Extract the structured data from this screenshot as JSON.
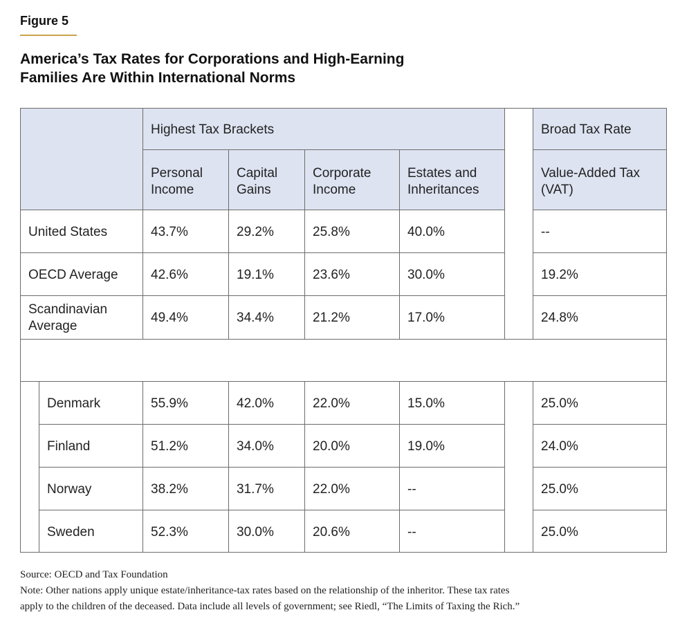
{
  "figure_label": "Figure 5",
  "title_line1": "America’s Tax Rates for Corporations and High-Earning",
  "title_line2": "Families Are Within International Norms",
  "header": {
    "group_highest": "Highest Tax Brackets",
    "group_broad": "Broad Tax Rate",
    "col_personal_1": "Personal",
    "col_personal_2": "Income",
    "col_capital_1": "Capital",
    "col_capital_2": "Gains",
    "col_corporate_1": "Corporate",
    "col_corporate_2": "Income",
    "col_estates_1": "Estates and",
    "col_estates_2": "Inheritances",
    "col_vat_1": "Value-Added Tax",
    "col_vat_2": "(VAT)"
  },
  "rows": [
    {
      "name": "United States",
      "personal": "43.7%",
      "capital": "29.2%",
      "corporate": "25.8%",
      "estates": "40.0%",
      "vat": "--"
    },
    {
      "name": "OECD Average",
      "personal": "42.6%",
      "capital": "19.1%",
      "corporate": "23.6%",
      "estates": "30.0%",
      "vat": "19.2%"
    },
    {
      "name_1": "Scandinavian",
      "name_2": "Average",
      "personal": "49.4%",
      "capital": "34.4%",
      "corporate": "21.2%",
      "estates": "17.0%",
      "vat": "24.8%"
    },
    {
      "name": "Denmark",
      "personal": "55.9%",
      "capital": "42.0%",
      "corporate": "22.0%",
      "estates": "15.0%",
      "vat": "25.0%"
    },
    {
      "name": "Finland",
      "personal": "51.2%",
      "capital": "34.0%",
      "corporate": "20.0%",
      "estates": "19.0%",
      "vat": "24.0%"
    },
    {
      "name": "Norway",
      "personal": "38.2%",
      "capital": "31.7%",
      "corporate": "22.0%",
      "estates": "--",
      "vat": "25.0%"
    },
    {
      "name": "Sweden",
      "personal": "52.3%",
      "capital": "30.0%",
      "corporate": "20.6%",
      "estates": "--",
      "vat": "25.0%"
    }
  ],
  "source": "Source: OECD and Tax Foundation",
  "note_line1": "Note: Other nations apply unique estate/inheritance-tax rates based on the relationship of the inheritor. These tax rates",
  "note_line2": "apply to the children of the deceased. Data include all levels of government; see Riedl, “The Limits of Taxing the Rich.”"
}
